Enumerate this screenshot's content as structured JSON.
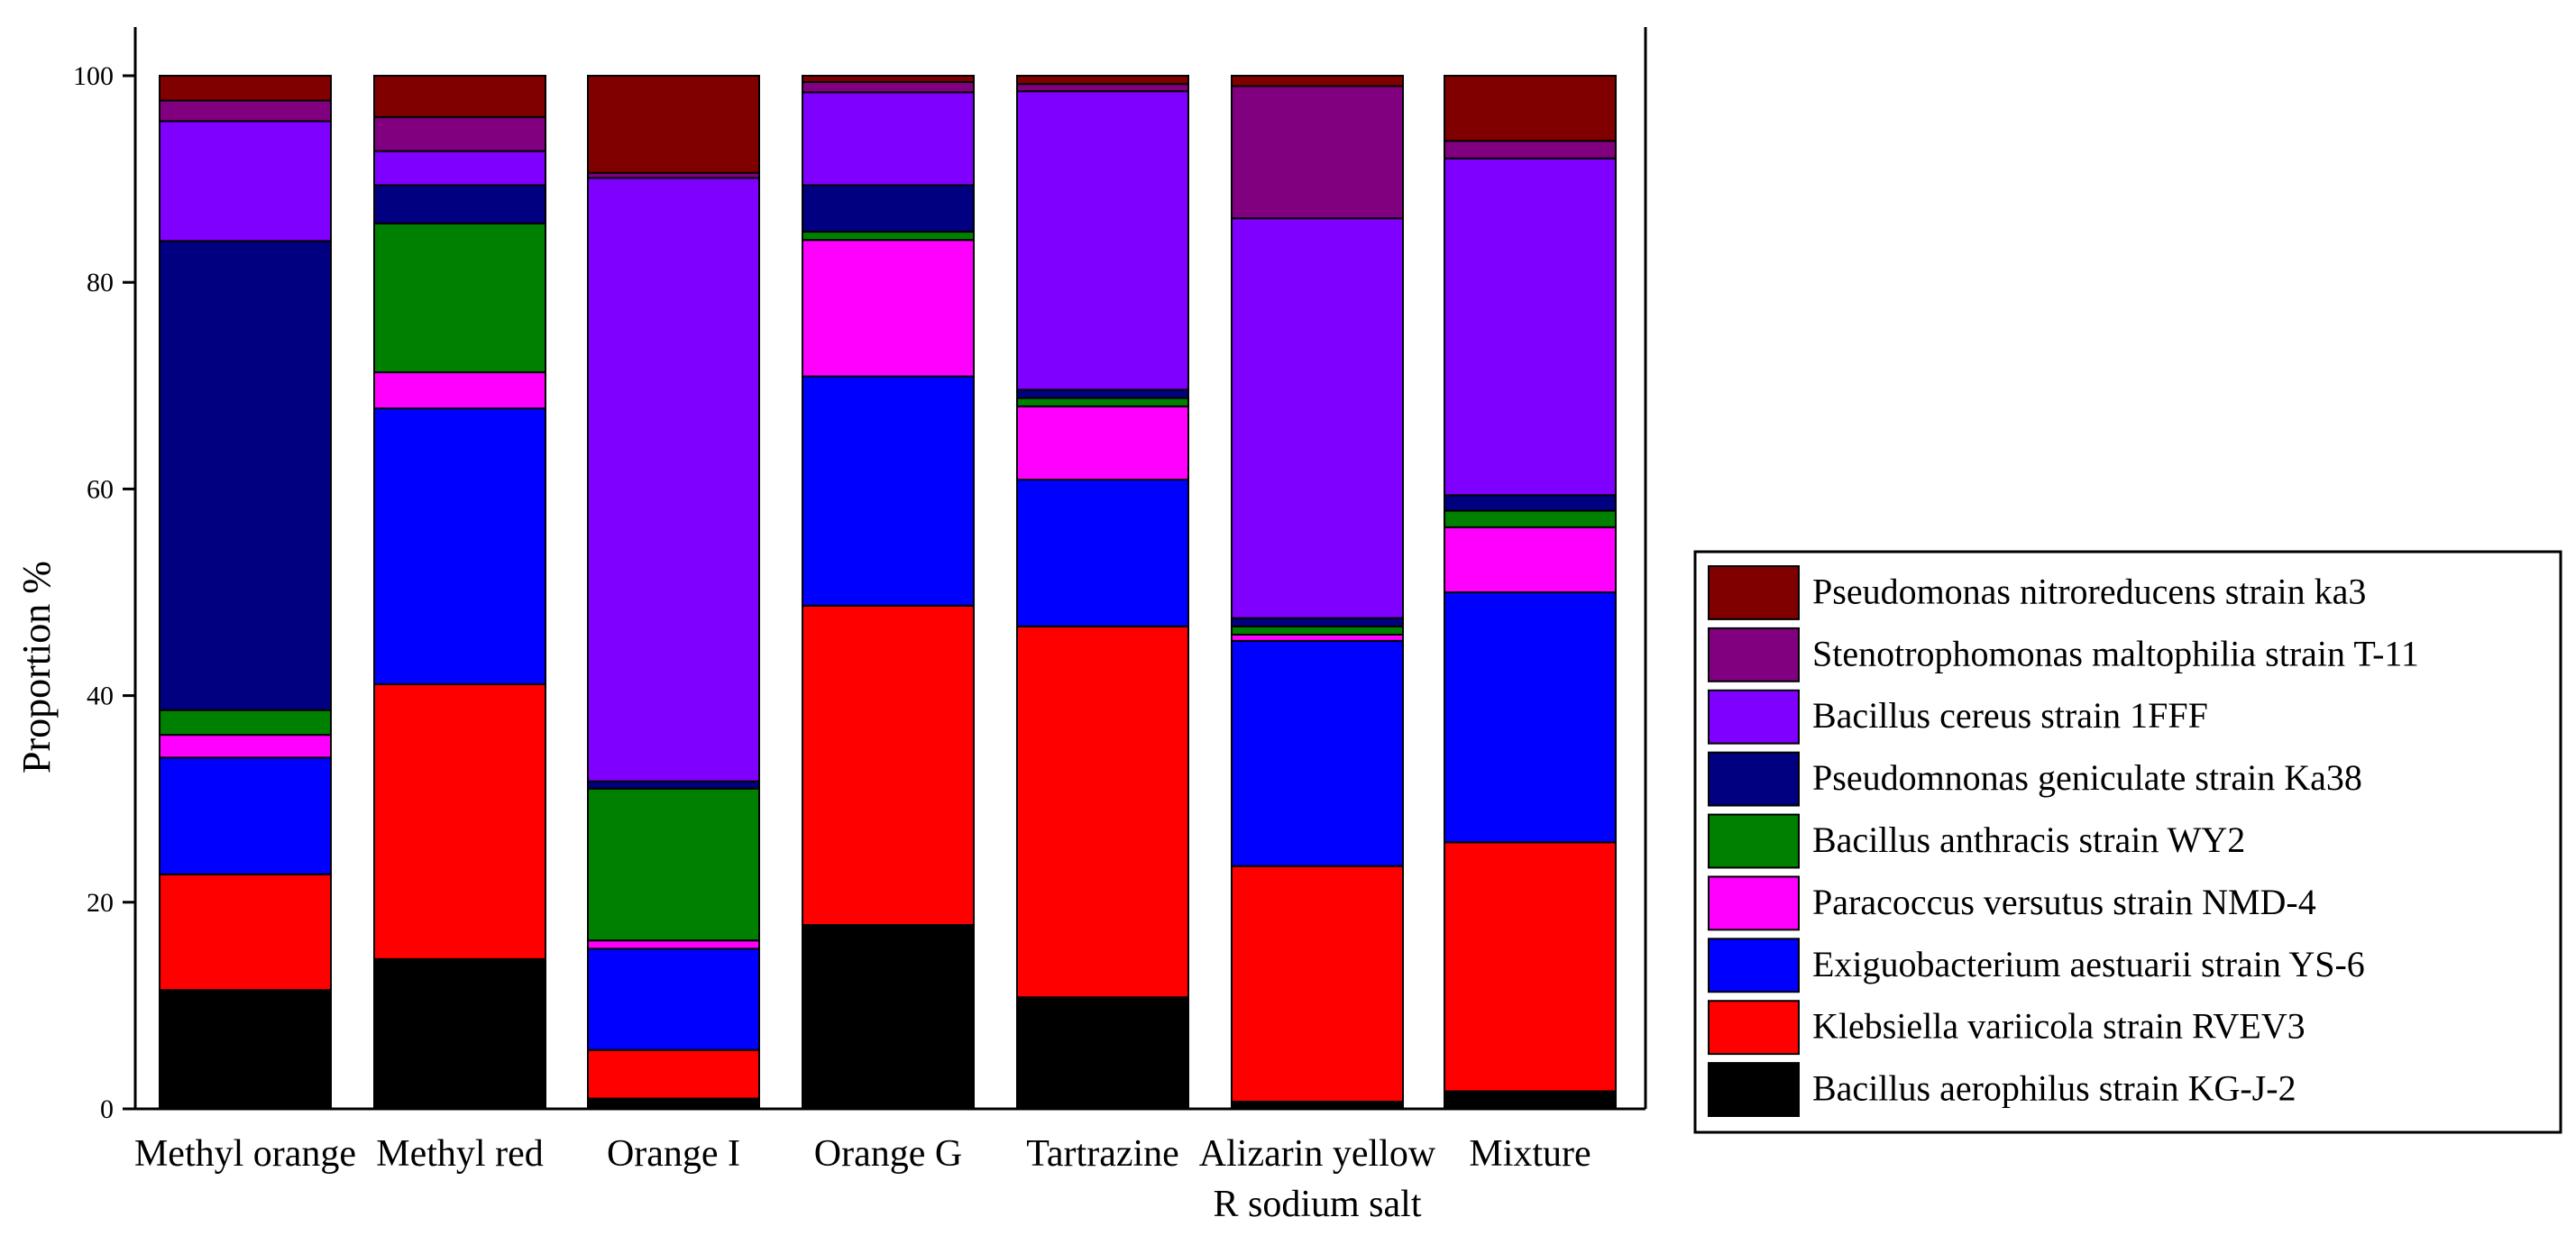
{
  "chart_data": {
    "type": "bar",
    "stacked": true,
    "title": "",
    "xlabel": "",
    "ylabel": "Proportion %",
    "ylim": [
      0,
      100
    ],
    "yticks": [
      0,
      20,
      40,
      60,
      80,
      100
    ],
    "grid": false,
    "legend_position": "right",
    "categories": [
      [
        "Methyl  orange"
      ],
      [
        "Methyl  red"
      ],
      [
        "Orange I"
      ],
      [
        "Orange G"
      ],
      [
        "Tartrazine"
      ],
      [
        "Alizarin  yellow",
        "R sodium salt"
      ],
      [
        "Mixture"
      ]
    ],
    "series": [
      {
        "name": "Bacillus aerophilus strain KG-J-2",
        "color": "#000000",
        "values": [
          11.5,
          14.5,
          1.0,
          17.8,
          10.8,
          0.7,
          1.7
        ]
      },
      {
        "name": "Klebsiella variicola strain RVEV3",
        "color": "#ff0000",
        "values": [
          11.2,
          26.6,
          4.7,
          30.9,
          35.9,
          22.8,
          24.1
        ]
      },
      {
        "name": "Exiguobacterium aestuarii  strain YS-6",
        "color": "#0000ff",
        "values": [
          11.3,
          26.7,
          9.8,
          22.2,
          14.2,
          21.8,
          24.2
        ]
      },
      {
        "name": "Paracoccus versutus strain NMD-4",
        "color": "#ff00ff",
        "values": [
          2.2,
          3.5,
          0.8,
          13.2,
          7.1,
          0.6,
          6.3
        ]
      },
      {
        "name": "Bacillus anthracis strain WY2",
        "color": "#008000",
        "values": [
          2.4,
          14.4,
          14.7,
          0.8,
          0.8,
          0.8,
          1.6
        ]
      },
      {
        "name": "Pseudomnonas geniculate strain Ka38",
        "color": "#000080",
        "values": [
          45.4,
          3.7,
          0.7,
          4.5,
          0.8,
          0.8,
          1.5
        ]
      },
      {
        "name": "Bacillus cereus strain 1FFF",
        "color": "#8000ff",
        "values": [
          11.6,
          3.3,
          58.4,
          9.0,
          28.9,
          38.7,
          32.6
        ]
      },
      {
        "name": "Stenotrophomonas maltophilia strain T-11",
        "color": "#800080",
        "values": [
          2.0,
          3.3,
          0.5,
          1.0,
          0.7,
          12.8,
          1.7
        ]
      },
      {
        "name": "Pseudomonas nitroreducens strain ka3",
        "color": "#800000",
        "values": [
          2.4,
          4.0,
          9.4,
          0.6,
          0.8,
          1.0,
          6.3
        ]
      }
    ],
    "legend_order": [
      "Pseudomonas nitroreducens strain ka3",
      "Stenotrophomonas maltophilia strain T-11",
      "Bacillus cereus strain 1FFF",
      "Pseudomnonas geniculate strain Ka38",
      "Bacillus anthracis strain WY2",
      "Paracoccus versutus strain NMD-4",
      "Exiguobacterium aestuarii  strain YS-6",
      "Klebsiella variicola strain RVEV3",
      "Bacillus aerophilus strain KG-J-2"
    ]
  }
}
